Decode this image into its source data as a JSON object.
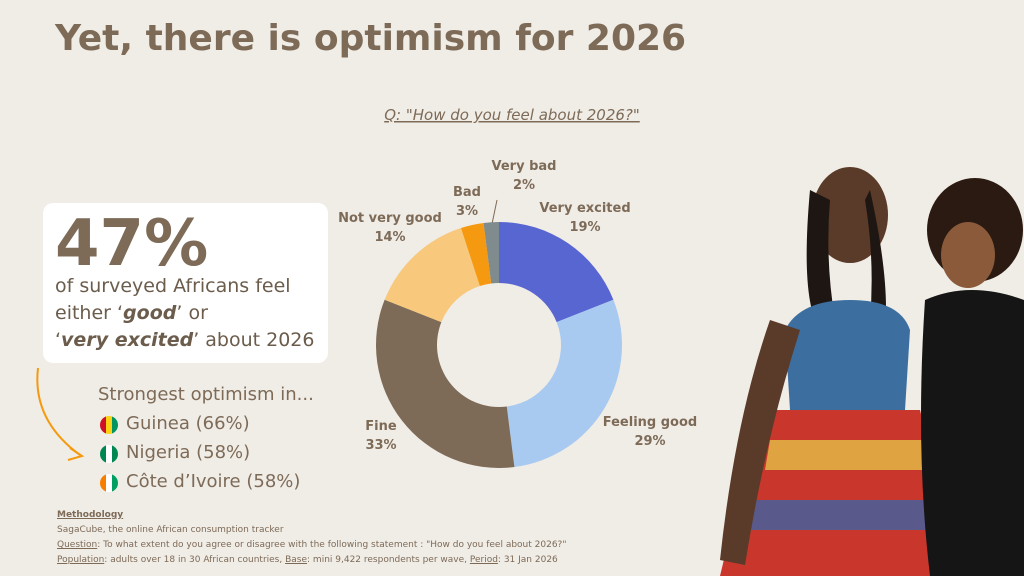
{
  "title": "Yet, there is optimism for 2026",
  "callout": {
    "big": "47%",
    "parts": [
      "of surveyed Africans feel",
      "either ‘",
      "good",
      "’ or",
      "‘",
      "very excited",
      "’ about 2026"
    ]
  },
  "strongest": {
    "heading": "Strongest optimism in...",
    "items": [
      "Guinea (66%)",
      "Nigeria (58%)",
      "Côte d’Ivoire (58%)"
    ]
  },
  "methodology": {
    "heading": "Methodology",
    "source": "SagaCube, the online African consumption tracker",
    "question_label": "Question",
    "question": ": To what extent do you agree or disagree with the following statement : \"How do you feel about 2026?\"",
    "population_label": "Population",
    "population": ": adults over 18 in 30 African countries, ",
    "base_label": "Base",
    "base": ": mini 9,422 respondents per wave, ",
    "period_label": "Period",
    "period": ": 31 Jan 2026"
  },
  "chart_data": {
    "type": "donut",
    "title": "Q: \"How do you feel about 2026?\"",
    "categories": [
      "Very excited",
      "Feeling good",
      "Fine",
      "Not very good",
      "Bad",
      "Very bad"
    ],
    "values": [
      19,
      29,
      33,
      14,
      3,
      2
    ],
    "value_labels": [
      "19%",
      "29%",
      "33%",
      "14%",
      "3%",
      "2%"
    ],
    "colors": [
      "#5866d2",
      "#a9caf0",
      "#7d6b58",
      "#f8c87d",
      "#f59a10",
      "#7f8b8c"
    ]
  }
}
